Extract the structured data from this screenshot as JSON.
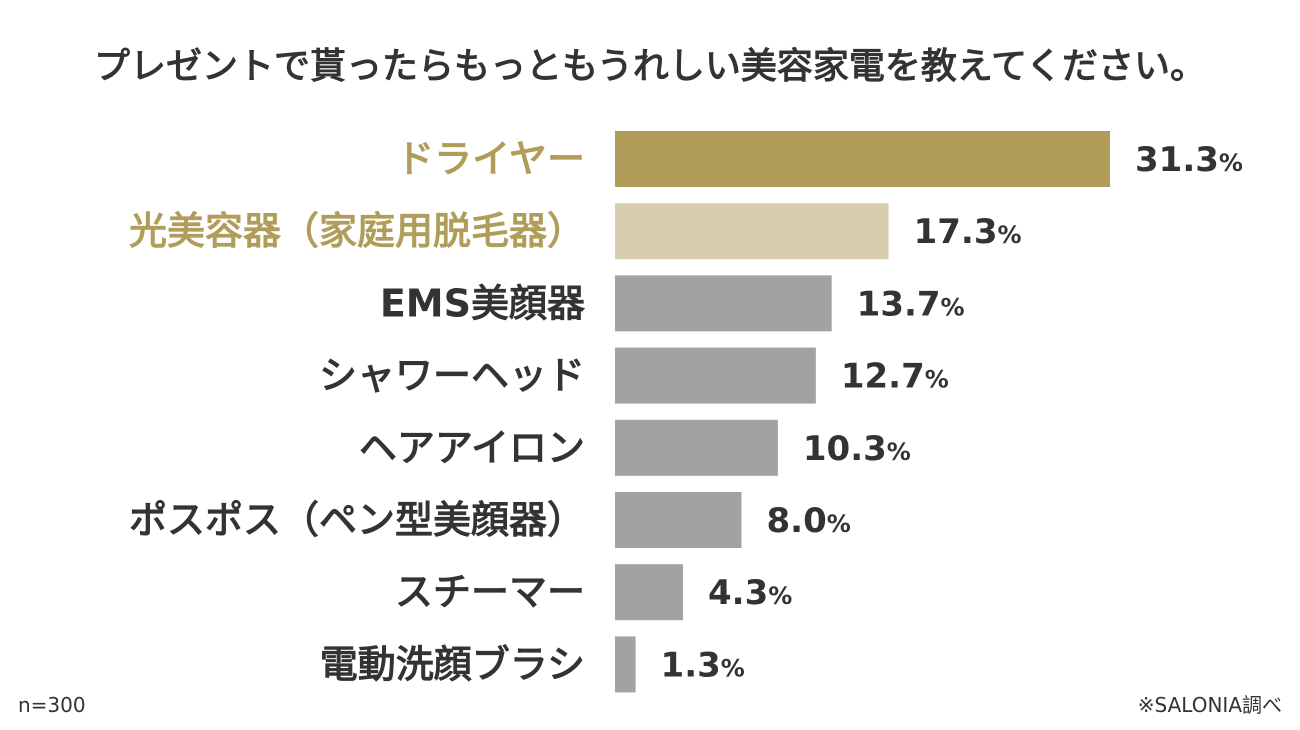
{
  "chart_data": {
    "type": "bar",
    "orientation": "horizontal",
    "title": "プレゼントで貰ったらもっともうれしい美容家電を教えてください。",
    "categories": [
      "ドライヤー",
      "光美容器（家庭用脱毛器）",
      "EMS美顔器",
      "シャワーヘッド",
      "ヘアアイロン",
      "ポスポス（ペン型美顔器）",
      "スチーマー",
      "電動洗顔ブラシ"
    ],
    "values": [
      31.3,
      17.3,
      13.7,
      12.7,
      10.3,
      8.0,
      4.3,
      1.3
    ],
    "value_labels": [
      "31.3",
      "17.3",
      "13.7",
      "12.7",
      "10.3",
      "8.0",
      "4.3",
      "1.3"
    ],
    "unit": "%",
    "bar_colors": [
      "#b09d5a",
      "#d8cdae",
      "#a3a2a0",
      "#a3a2a0",
      "#a3a2a0",
      "#a3a2a0",
      "#a3a2a0",
      "#a3a2a0"
    ],
    "label_colors": [
      "#b09d5a",
      "#b09d5a",
      "#333333",
      "#333333",
      "#333333",
      "#333333",
      "#333333",
      "#333333"
    ],
    "note_left": "n=300",
    "note_right": "※SALONIA調べ",
    "grid": false,
    "legend": "none"
  }
}
